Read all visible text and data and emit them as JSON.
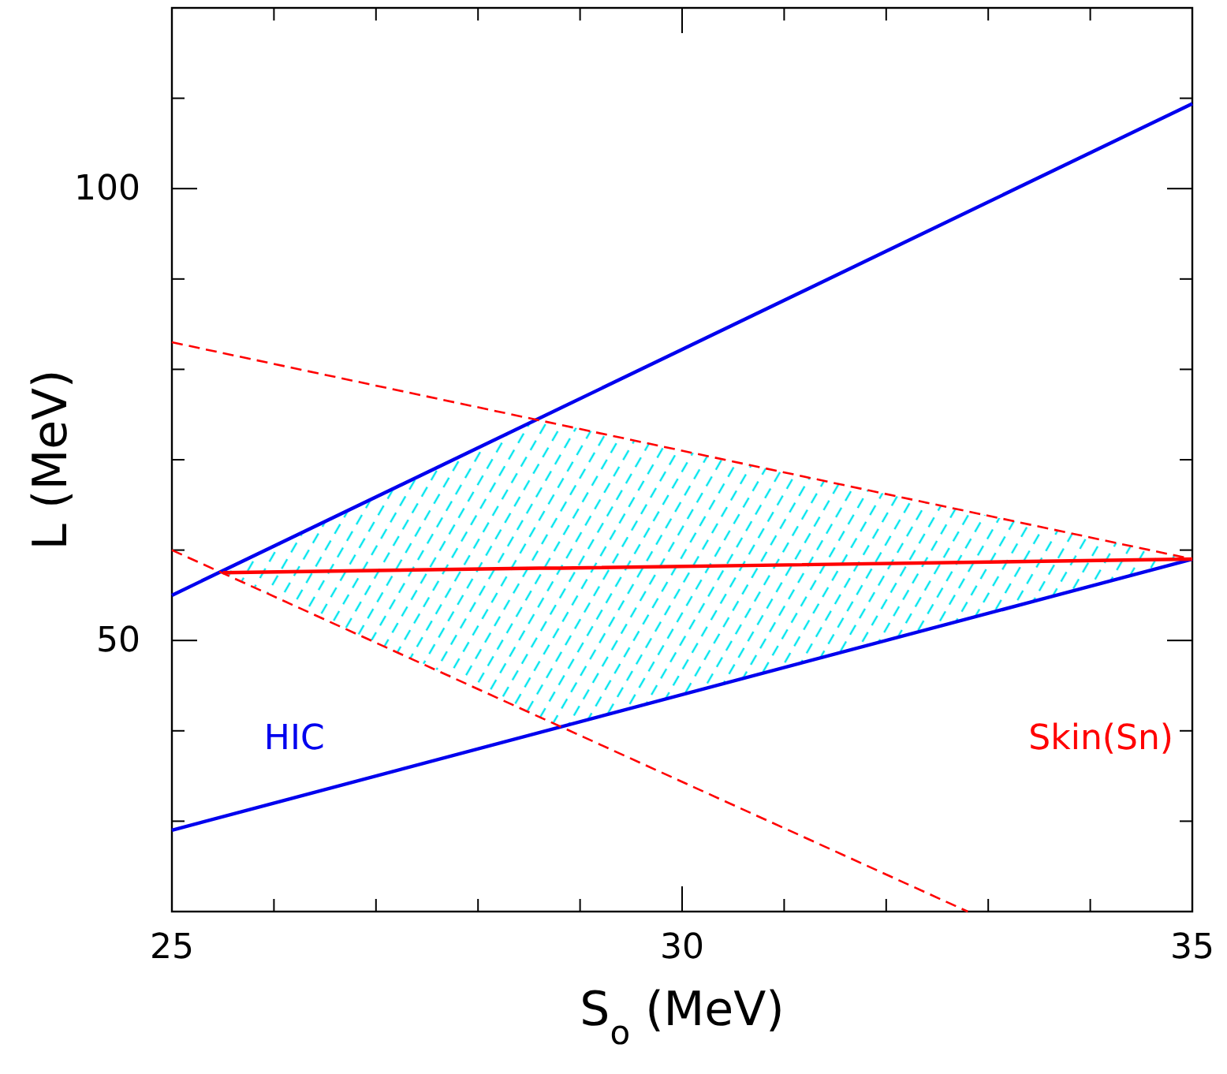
{
  "chart_data": {
    "type": "line",
    "xlabel": "S$_{o}$ (MeV)",
    "ylabel": "L (MeV)",
    "xlim": [
      25,
      35
    ],
    "ylim": [
      20,
      120
    ],
    "xticks": [
      25,
      {
        "value": 26,
        "label": null
      },
      {
        "value": 27,
        "label": null
      },
      {
        "value": 28,
        "label": null
      },
      {
        "value": 29,
        "label": null
      },
      30,
      {
        "value": 31,
        "label": null
      },
      {
        "value": 32,
        "label": null
      },
      {
        "value": 33,
        "label": null
      },
      {
        "value": 34,
        "label": null
      },
      35
    ],
    "yticks": [
      {
        "value": 20,
        "label": null
      },
      {
        "value": 30,
        "label": null
      },
      {
        "value": 40,
        "label": null
      },
      50,
      {
        "value": 60,
        "label": null
      },
      {
        "value": 70,
        "label": null
      },
      {
        "value": 80,
        "label": null
      },
      {
        "value": 90,
        "label": null
      },
      100,
      {
        "value": 110,
        "label": null
      },
      {
        "value": 120,
        "label": null
      }
    ],
    "grid": false,
    "series": [
      {
        "name": "HIC",
        "color": "#0000ee",
        "x": [
          25,
          35
        ],
        "values": [
          55,
          109.4
        ],
        "line_style": "solid"
      },
      {
        "color": "#0000ee",
        "x": [
          25,
          35
        ],
        "values": [
          29,
          59
        ],
        "line_style": "solid"
      },
      {
        "name": "Skin(Sn)",
        "color": "#ff0000",
        "x": [
          25.5,
          28.6,
          28.8,
          35
        ],
        "values": [
          57.5,
          58,
          58,
          59
        ],
        "lower": [
          57.5,
          41.6,
          40.4,
          59
        ],
        "upper": [
          57.5,
          74.4,
          73.9,
          59
        ],
        "line_style": "solid"
      },
      {
        "color": "#ff0000",
        "x": [
          25,
          35
        ],
        "values": [
          83,
          59
        ],
        "line_style": "dashed"
      },
      {
        "color": "#ff0000",
        "x": [
          25,
          32.8
        ],
        "values": [
          60,
          20
        ],
        "line_style": "dashed"
      }
    ]
  }
}
